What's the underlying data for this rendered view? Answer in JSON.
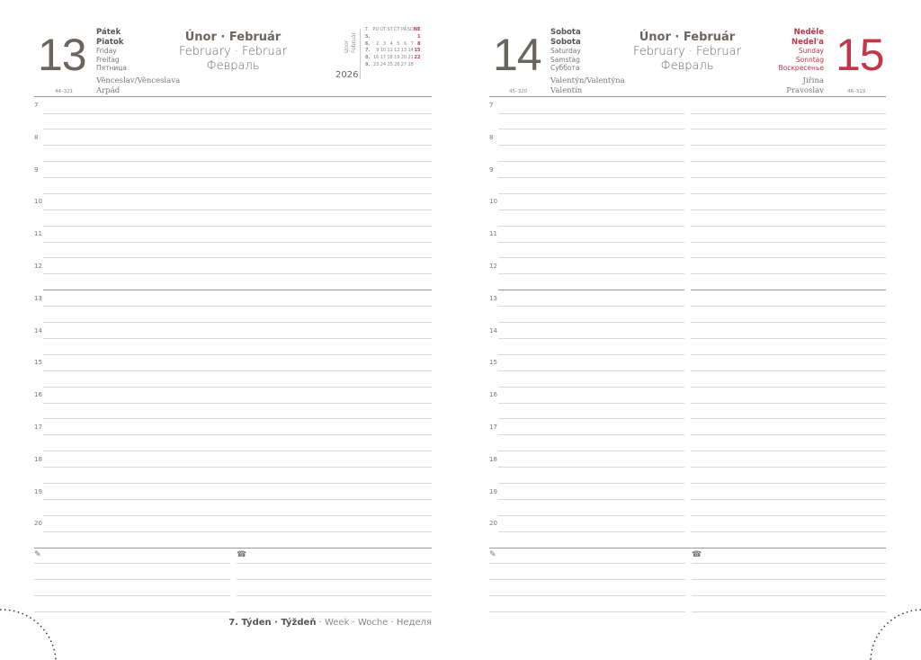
{
  "left": {
    "day_number": "13",
    "days": [
      "Pátek",
      "Piatok",
      "Friday",
      "Freitag",
      "Пятница"
    ],
    "month": [
      "Únor · Február",
      "February · Februar",
      "Февраль"
    ],
    "names": [
      "Věnceslav/Věnceslava",
      "Arpád"
    ],
    "code": "44–321",
    "year": "2026",
    "mini_title": [
      "Únor",
      "Február"
    ],
    "mini_cal": {
      "header": [
        "T.",
        "PO",
        "ÚT",
        "ST",
        "ČT",
        "PÁ",
        "SO",
        "NE"
      ],
      "rows": [
        [
          "5.",
          "",
          "",
          "",
          "",
          "",
          "",
          "1"
        ],
        [
          "6.",
          "2",
          "3",
          "4",
          "5",
          "6",
          "7",
          "8"
        ],
        [
          "7.",
          "9",
          "10",
          "11",
          "12",
          "13",
          "14",
          "15"
        ],
        [
          "8.",
          "16",
          "17",
          "18",
          "19",
          "20",
          "21",
          "22"
        ],
        [
          "9.",
          "23",
          "24",
          "25",
          "26",
          "27",
          "28",
          ""
        ]
      ]
    },
    "week_bold": "7. Týden · Týždeň",
    "week_rest": " · Week · Woche · Неделя"
  },
  "right": {
    "day_number_left": "14",
    "days_left": [
      "Sobota",
      "Sobota",
      "Saturday",
      "Samstag",
      "Суббота"
    ],
    "day_number_right": "15",
    "days_right": [
      "Neděle",
      "Nedel'a",
      "Sunday",
      "Sonntag",
      "Воскресенье"
    ],
    "month": [
      "Únor · Február",
      "February · Februar",
      "Февраль"
    ],
    "names_left": [
      "Valentýn/Valentýna",
      "Valentín"
    ],
    "code_left": "45–320",
    "names_right": [
      "Jiřina",
      "Pravoslav"
    ],
    "code_right": "46–319"
  },
  "hours": [
    "7",
    "8",
    "9",
    "10",
    "11",
    "12",
    "13",
    "14",
    "15",
    "16",
    "17",
    "18",
    "19",
    "20"
  ],
  "icons": {
    "notes": "pencil-icon",
    "phone": "phone-icon"
  },
  "colors": {
    "sunday": "#c0394b",
    "text": "#6b6560"
  }
}
